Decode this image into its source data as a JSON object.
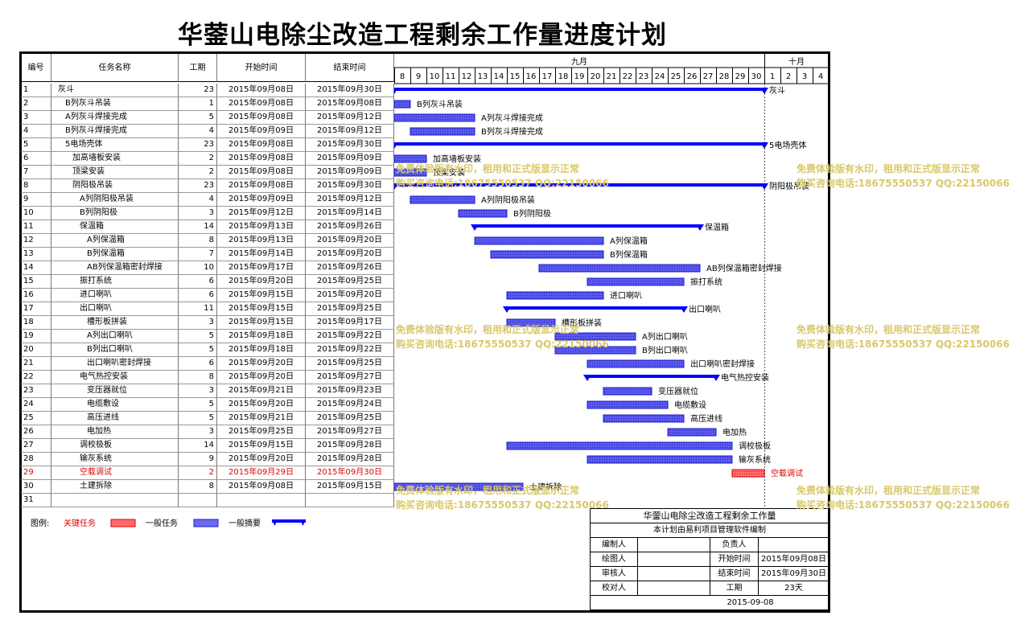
{
  "title": "华蓥山电除尘改造工程剩余工作量进度计划",
  "headers": {
    "id": "编号",
    "name": "任务名称",
    "duration": "工期",
    "start": "开始时间",
    "end": "结束时间"
  },
  "months": [
    {
      "label": "九月"
    },
    {
      "label": "十月"
    }
  ],
  "days": [
    "8",
    "9",
    "10",
    "11",
    "12",
    "13",
    "14",
    "15",
    "16",
    "17",
    "18",
    "19",
    "20",
    "21",
    "22",
    "23",
    "24",
    "25",
    "26",
    "27",
    "28",
    "29",
    "30",
    "1",
    "2",
    "3",
    "4"
  ],
  "tasks": [
    {
      "id": "1",
      "name": "灰斗",
      "indent": 0,
      "duration": "23",
      "start": "2015年09月08日",
      "end": "2015年09月30日",
      "type": "summary",
      "s": 0,
      "e": 23,
      "label": "灰斗"
    },
    {
      "id": "2",
      "name": "B列灰斗吊装",
      "indent": 1,
      "duration": "1",
      "start": "2015年09月08日",
      "end": "2015年09月08日",
      "type": "task",
      "s": 0,
      "e": 1,
      "label": "B列灰斗吊装"
    },
    {
      "id": "3",
      "name": "A列灰斗焊接完成",
      "indent": 1,
      "duration": "5",
      "start": "2015年09月08日",
      "end": "2015年09月12日",
      "type": "task",
      "s": 0,
      "e": 5,
      "label": "A列灰斗焊接完成"
    },
    {
      "id": "4",
      "name": "B列灰斗焊接完成",
      "indent": 1,
      "duration": "4",
      "start": "2015年09月09日",
      "end": "2015年09月12日",
      "type": "task",
      "s": 1,
      "e": 5,
      "label": "B列灰斗焊接完成"
    },
    {
      "id": "5",
      "name": "5电场壳体",
      "indent": 1,
      "duration": "23",
      "start": "2015年09月08日",
      "end": "2015年09月30日",
      "type": "summary",
      "s": 0,
      "e": 23,
      "label": "5电场壳体"
    },
    {
      "id": "6",
      "name": "加高墙板安装",
      "indent": 2,
      "duration": "2",
      "start": "2015年09月08日",
      "end": "2015年09月09日",
      "type": "task",
      "s": 0,
      "e": 2,
      "label": "加高墙板安装"
    },
    {
      "id": "7",
      "name": "顶梁安装",
      "indent": 2,
      "duration": "2",
      "start": "2015年09月08日",
      "end": "2015年09月09日",
      "type": "task",
      "s": 0,
      "e": 2,
      "label": "顶梁安装"
    },
    {
      "id": "8",
      "name": "阴阳极吊装",
      "indent": 2,
      "duration": "23",
      "start": "2015年09月08日",
      "end": "2015年09月30日",
      "type": "summary",
      "s": 0,
      "e": 23,
      "label": "阴阳极吊装"
    },
    {
      "id": "9",
      "name": "A列阴阳极吊装",
      "indent": 3,
      "duration": "4",
      "start": "2015年09月09日",
      "end": "2015年09月12日",
      "type": "task",
      "s": 1,
      "e": 5,
      "label": "A列阴阳极吊装"
    },
    {
      "id": "10",
      "name": "B列阴阳极",
      "indent": 3,
      "duration": "3",
      "start": "2015年09月12日",
      "end": "2015年09月14日",
      "type": "task",
      "s": 4,
      "e": 7,
      "label": "B列阴阳极"
    },
    {
      "id": "11",
      "name": "保温箱",
      "indent": 3,
      "duration": "14",
      "start": "2015年09月13日",
      "end": "2015年09月26日",
      "type": "summary",
      "s": 5,
      "e": 19,
      "label": "保温箱"
    },
    {
      "id": "12",
      "name": "A列保温箱",
      "indent": 4,
      "duration": "8",
      "start": "2015年09月13日",
      "end": "2015年09月20日",
      "type": "task",
      "s": 5,
      "e": 13,
      "label": "A列保温箱"
    },
    {
      "id": "13",
      "name": "B列保温箱",
      "indent": 4,
      "duration": "7",
      "start": "2015年09月14日",
      "end": "2015年09月20日",
      "type": "task",
      "s": 6,
      "e": 13,
      "label": "B列保温箱"
    },
    {
      "id": "14",
      "name": "AB列保温箱密封焊接",
      "indent": 4,
      "duration": "10",
      "start": "2015年09月17日",
      "end": "2015年09月26日",
      "type": "task",
      "s": 9,
      "e": 19,
      "label": "AB列保温箱密封焊接"
    },
    {
      "id": "15",
      "name": "振打系统",
      "indent": 3,
      "duration": "6",
      "start": "2015年09月20日",
      "end": "2015年09月25日",
      "type": "task",
      "s": 12,
      "e": 18,
      "label": "振打系统"
    },
    {
      "id": "16",
      "name": "进口喇叭",
      "indent": 3,
      "duration": "6",
      "start": "2015年09月15日",
      "end": "2015年09月20日",
      "type": "task",
      "s": 7,
      "e": 13,
      "label": "进口喇叭"
    },
    {
      "id": "17",
      "name": "出口喇叭",
      "indent": 3,
      "duration": "11",
      "start": "2015年09月15日",
      "end": "2015年09月25日",
      "type": "summary",
      "s": 7,
      "e": 18,
      "label": "出口喇叭"
    },
    {
      "id": "18",
      "name": "槽形板拼装",
      "indent": 4,
      "duration": "3",
      "start": "2015年09月15日",
      "end": "2015年09月17日",
      "type": "task",
      "s": 7,
      "e": 10,
      "label": "槽形板拼装"
    },
    {
      "id": "19",
      "name": "A列出口喇叭",
      "indent": 4,
      "duration": "5",
      "start": "2015年09月18日",
      "end": "2015年09月22日",
      "type": "task",
      "s": 10,
      "e": 15,
      "label": "A列出口喇叭"
    },
    {
      "id": "20",
      "name": "B列出口喇叭",
      "indent": 4,
      "duration": "5",
      "start": "2015年09月18日",
      "end": "2015年09月22日",
      "type": "task",
      "s": 10,
      "e": 15,
      "label": "B列出口喇叭"
    },
    {
      "id": "21",
      "name": "出口喇叭密封焊接",
      "indent": 4,
      "duration": "6",
      "start": "2015年09月20日",
      "end": "2015年09月25日",
      "type": "task",
      "s": 12,
      "e": 18,
      "label": "出口喇叭密封焊接"
    },
    {
      "id": "22",
      "name": "电气热控安装",
      "indent": 3,
      "duration": "8",
      "start": "2015年09月20日",
      "end": "2015年09月27日",
      "type": "summary",
      "s": 12,
      "e": 20,
      "label": "电气热控安装"
    },
    {
      "id": "23",
      "name": "变压器就位",
      "indent": 4,
      "duration": "3",
      "start": "2015年09月21日",
      "end": "2015年09月23日",
      "type": "task",
      "s": 13,
      "e": 16,
      "label": "变压器就位"
    },
    {
      "id": "24",
      "name": "电缆敷设",
      "indent": 4,
      "duration": "5",
      "start": "2015年09月20日",
      "end": "2015年09月24日",
      "type": "task",
      "s": 12,
      "e": 17,
      "label": "电缆敷设"
    },
    {
      "id": "25",
      "name": "高压进线",
      "indent": 4,
      "duration": "5",
      "start": "2015年09月21日",
      "end": "2015年09月25日",
      "type": "task",
      "s": 13,
      "e": 18,
      "label": "高压进线"
    },
    {
      "id": "26",
      "name": "电加热",
      "indent": 4,
      "duration": "3",
      "start": "2015年09月25日",
      "end": "2015年09月27日",
      "type": "task",
      "s": 17,
      "e": 20,
      "label": "电加热"
    },
    {
      "id": "27",
      "name": "调校极板",
      "indent": 3,
      "duration": "14",
      "start": "2015年09月15日",
      "end": "2015年09月28日",
      "type": "task",
      "s": 7,
      "e": 21,
      "label": "调校极板"
    },
    {
      "id": "28",
      "name": "输灰系统",
      "indent": 3,
      "duration": "9",
      "start": "2015年09月20日",
      "end": "2015年09月28日",
      "type": "task",
      "s": 12,
      "e": 21,
      "label": "输灰系统"
    },
    {
      "id": "29",
      "name": "空载调试",
      "indent": 3,
      "duration": "2",
      "start": "2015年09月29日",
      "end": "2015年09月30日",
      "type": "critical",
      "s": 21,
      "e": 23,
      "label": "空载调试"
    },
    {
      "id": "30",
      "name": "土建拆除",
      "indent": 3,
      "duration": "8",
      "start": "2015年09月08日",
      "end": "2015年09月15日",
      "type": "task",
      "s": 0,
      "e": 8,
      "label": "土建拆除"
    },
    {
      "id": "31",
      "name": "",
      "indent": 0,
      "duration": "",
      "start": "",
      "end": "",
      "type": "none",
      "label": ""
    }
  ],
  "legend": {
    "prefix": "图例:",
    "critical": "关键任务",
    "task": "一般任务",
    "summary": "一般摘要"
  },
  "info": {
    "project": "华蓥山电除尘改造工程剩余工作量",
    "note": "本计划由易利项目管理软件编制",
    "editor_label": "编制人",
    "owner_label": "负责人",
    "drawer_label": "绘图人",
    "start_label": "开始时间",
    "start_value": "2015年09月08日",
    "reviewer_label": "审核人",
    "end_label": "结束时间",
    "end_value": "2015年09月30日",
    "checker_label": "校对人",
    "duration_label": "工期",
    "duration_value": "23天",
    "date": "2015-09-08"
  },
  "watermark": {
    "line1": "免费体验版有水印，租用和正式版显示正常",
    "line2": "购买咨询电话:18675550537 QQ:22150066"
  },
  "colors": {
    "task": "#1c1cc8",
    "critical": "#e00000",
    "summary": "#0000ff",
    "critical_text": "#e00000"
  }
}
